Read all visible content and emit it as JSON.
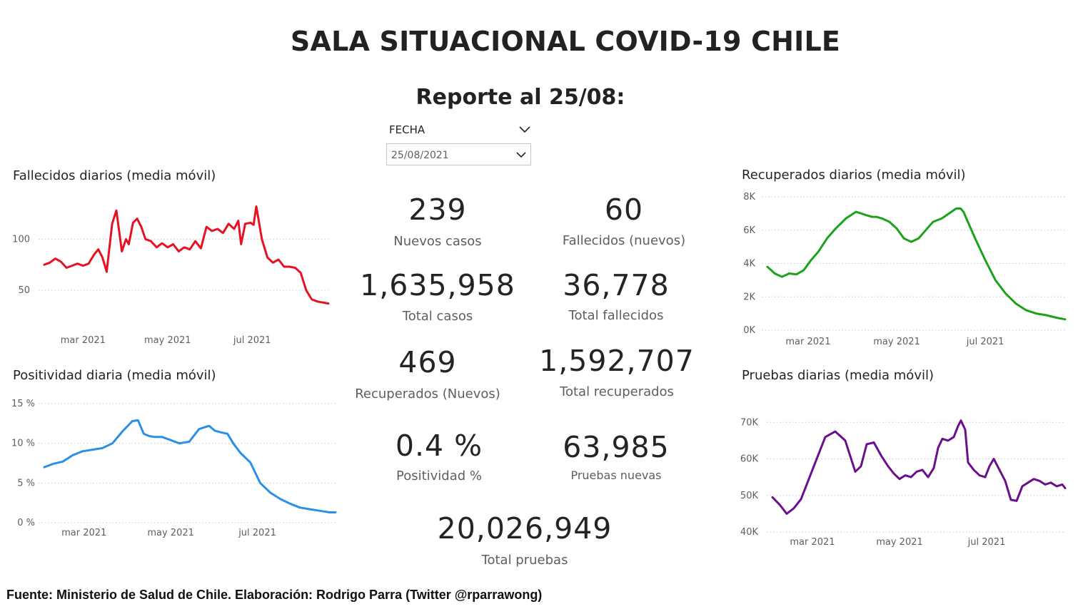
{
  "header": {
    "title": "SALA SITUACIONAL COVID-19 CHILE",
    "report": "Reporte al 25/08:"
  },
  "slicer": {
    "label": "FECHA",
    "value": "25/08/2021"
  },
  "cards": [
    {
      "value": "239",
      "label": "Nuevos casos"
    },
    {
      "value": "60",
      "label": "Fallecidos (nuevos)"
    },
    {
      "value": "1,635,958",
      "label": "Total casos"
    },
    {
      "value": "36,778",
      "label": "Total fallecidos"
    },
    {
      "value": "469",
      "label": "Recuperados (Nuevos)"
    },
    {
      "value": "1,592,707",
      "label": "Total recuperados"
    },
    {
      "value": "0.4 %",
      "label": "Positividad %"
    },
    {
      "value": "63,985",
      "label": "Pruebas nuevas"
    },
    {
      "value": "20,026,949",
      "label": "Total pruebas"
    }
  ],
  "footer": "Fuente: Ministerio de Salud de Chile. Elaboración: Rodrigo Parra (Twitter @rparrawong)",
  "colors": {
    "fallecidos": "#e81123",
    "positividad": "#2b8fe8",
    "recuperados": "#1aa31a",
    "pruebas": "#6b0f8c"
  },
  "chart_data": [
    {
      "type": "line",
      "title": "Fallecidos diarios (media móvil)",
      "xlim": [
        "2021-02-01",
        "2021-08-25"
      ],
      "x_ticks": [
        {
          "date": "2021-03-01",
          "label": "mar 2021"
        },
        {
          "date": "2021-05-01",
          "label": "may 2021"
        },
        {
          "date": "2021-07-01",
          "label": "jul 2021"
        }
      ],
      "ylim": [
        20,
        140
      ],
      "y_ticks": [
        {
          "value": 50,
          "label": "50"
        },
        {
          "value": 100,
          "label": "100"
        }
      ],
      "grid": true,
      "x": [
        "2021-02-01",
        "2021-02-05",
        "2021-02-09",
        "2021-02-13",
        "2021-02-17",
        "2021-02-21",
        "2021-02-25",
        "2021-03-01",
        "2021-03-05",
        "2021-03-09",
        "2021-03-12",
        "2021-03-15",
        "2021-03-18",
        "2021-03-22",
        "2021-03-25",
        "2021-03-29",
        "2021-04-01",
        "2021-04-03",
        "2021-04-06",
        "2021-04-09",
        "2021-04-12",
        "2021-04-15",
        "2021-04-19",
        "2021-04-23",
        "2021-04-27",
        "2021-05-01",
        "2021-05-05",
        "2021-05-09",
        "2021-05-13",
        "2021-05-17",
        "2021-05-21",
        "2021-05-25",
        "2021-05-29",
        "2021-06-02",
        "2021-06-06",
        "2021-06-10",
        "2021-06-14",
        "2021-06-18",
        "2021-06-21",
        "2021-06-23",
        "2021-06-26",
        "2021-06-30",
        "2021-07-02",
        "2021-07-04",
        "2021-07-08",
        "2021-07-12",
        "2021-07-16",
        "2021-07-20",
        "2021-07-24",
        "2021-07-28",
        "2021-08-01",
        "2021-08-05",
        "2021-08-09",
        "2021-08-13",
        "2021-08-17",
        "2021-08-21",
        "2021-08-25"
      ],
      "values": [
        75,
        77,
        81,
        78,
        72,
        74,
        76,
        74,
        76,
        85,
        90,
        82,
        68,
        115,
        128,
        88,
        100,
        95,
        116,
        120,
        112,
        100,
        98,
        92,
        96,
        92,
        95,
        88,
        92,
        90,
        98,
        91,
        112,
        108,
        110,
        106,
        115,
        110,
        118,
        95,
        115,
        116,
        114,
        132,
        100,
        82,
        77,
        80,
        73,
        73,
        72,
        67,
        50,
        41,
        39,
        38,
        37
      ],
      "color": "#e81123"
    },
    {
      "type": "line",
      "title": "Positividad diaria (media móvil)",
      "xlim": [
        "2021-02-01",
        "2021-08-25"
      ],
      "x_ticks": [
        {
          "date": "2021-03-01",
          "label": "mar 2021"
        },
        {
          "date": "2021-05-01",
          "label": "may 2021"
        },
        {
          "date": "2021-07-01",
          "label": "jul 2021"
        }
      ],
      "ylim": [
        0,
        15
      ],
      "y_ticks": [
        {
          "value": 0,
          "label": "0 %"
        },
        {
          "value": 5,
          "label": "5 %"
        },
        {
          "value": 10,
          "label": "10 %"
        },
        {
          "value": 15,
          "label": "15 %"
        }
      ],
      "grid": true,
      "x": [
        "2021-02-01",
        "2021-02-07",
        "2021-02-14",
        "2021-02-21",
        "2021-02-28",
        "2021-03-07",
        "2021-03-14",
        "2021-03-21",
        "2021-03-28",
        "2021-04-04",
        "2021-04-08",
        "2021-04-12",
        "2021-04-16",
        "2021-04-20",
        "2021-04-25",
        "2021-05-01",
        "2021-05-07",
        "2021-05-14",
        "2021-05-21",
        "2021-05-28",
        "2021-06-01",
        "2021-06-05",
        "2021-06-10",
        "2021-06-14",
        "2021-06-19",
        "2021-06-26",
        "2021-07-03",
        "2021-07-10",
        "2021-07-17",
        "2021-07-24",
        "2021-07-31",
        "2021-08-07",
        "2021-08-14",
        "2021-08-21",
        "2021-08-25"
      ],
      "values": [
        7.0,
        7.4,
        7.7,
        8.5,
        9.0,
        9.2,
        9.4,
        10.0,
        11.5,
        12.8,
        12.9,
        11.2,
        10.9,
        10.8,
        10.8,
        10.4,
        10.0,
        10.2,
        11.8,
        12.2,
        11.6,
        11.4,
        11.2,
        10.0,
        8.8,
        7.6,
        5.0,
        3.8,
        3.0,
        2.4,
        1.9,
        1.7,
        1.5,
        1.3,
        1.3
      ],
      "color": "#2b8fe8"
    },
    {
      "type": "line",
      "title": "Recuperados diarios (media móvil)",
      "xlim": [
        "2021-02-01",
        "2021-08-25"
      ],
      "x_ticks": [
        {
          "date": "2021-03-01",
          "label": "mar 2021"
        },
        {
          "date": "2021-05-01",
          "label": "may 2021"
        },
        {
          "date": "2021-07-01",
          "label": "jul 2021"
        }
      ],
      "ylim": [
        0,
        8000
      ],
      "y_ticks": [
        {
          "value": 0,
          "label": "0K"
        },
        {
          "value": 2000,
          "label": "2K"
        },
        {
          "value": 4000,
          "label": "4K"
        },
        {
          "value": 6000,
          "label": "6K"
        },
        {
          "value": 8000,
          "label": "8K"
        }
      ],
      "grid": true,
      "x": [
        "2021-02-01",
        "2021-02-06",
        "2021-02-11",
        "2021-02-16",
        "2021-02-21",
        "2021-02-26",
        "2021-03-03",
        "2021-03-08",
        "2021-03-14",
        "2021-03-20",
        "2021-03-27",
        "2021-04-03",
        "2021-04-10",
        "2021-04-14",
        "2021-04-17",
        "2021-04-21",
        "2021-04-26",
        "2021-05-01",
        "2021-05-06",
        "2021-05-11",
        "2021-05-16",
        "2021-05-21",
        "2021-05-26",
        "2021-06-01",
        "2021-06-06",
        "2021-06-11",
        "2021-06-14",
        "2021-06-16",
        "2021-06-19",
        "2021-06-24",
        "2021-07-01",
        "2021-07-08",
        "2021-07-15",
        "2021-07-22",
        "2021-07-29",
        "2021-08-05",
        "2021-08-12",
        "2021-08-19",
        "2021-08-25"
      ],
      "values": [
        3800,
        3400,
        3200,
        3400,
        3350,
        3600,
        4200,
        4700,
        5500,
        6100,
        6700,
        7100,
        6900,
        6800,
        6800,
        6700,
        6500,
        6100,
        5500,
        5300,
        5500,
        6000,
        6500,
        6700,
        7000,
        7300,
        7300,
        7100,
        6500,
        5500,
        4200,
        3000,
        2200,
        1600,
        1200,
        1000,
        900,
        750,
        650
      ],
      "color": "#1aa31a"
    },
    {
      "type": "line",
      "title": "Pruebas diarias (media móvil)",
      "xlim": [
        "2021-02-01",
        "2021-08-25"
      ],
      "x_ticks": [
        {
          "date": "2021-03-01",
          "label": "mar 2021"
        },
        {
          "date": "2021-05-01",
          "label": "may 2021"
        },
        {
          "date": "2021-07-01",
          "label": "jul 2021"
        }
      ],
      "ylim": [
        40000,
        72000
      ],
      "y_ticks": [
        {
          "value": 40000,
          "label": "40K"
        },
        {
          "value": 50000,
          "label": "50K"
        },
        {
          "value": 60000,
          "label": "60K"
        },
        {
          "value": 70000,
          "label": "70K"
        }
      ],
      "grid": true,
      "x": [
        "2021-02-01",
        "2021-02-06",
        "2021-02-11",
        "2021-02-16",
        "2021-02-21",
        "2021-02-26",
        "2021-03-03",
        "2021-03-10",
        "2021-03-17",
        "2021-03-24",
        "2021-03-31",
        "2021-04-04",
        "2021-04-08",
        "2021-04-13",
        "2021-04-18",
        "2021-04-23",
        "2021-04-27",
        "2021-05-01",
        "2021-05-05",
        "2021-05-09",
        "2021-05-13",
        "2021-05-17",
        "2021-05-21",
        "2021-05-25",
        "2021-05-28",
        "2021-05-31",
        "2021-06-04",
        "2021-06-08",
        "2021-06-11",
        "2021-06-13",
        "2021-06-16",
        "2021-06-18",
        "2021-06-22",
        "2021-06-26",
        "2021-06-30",
        "2021-07-03",
        "2021-07-06",
        "2021-07-10",
        "2021-07-14",
        "2021-07-18",
        "2021-07-22",
        "2021-07-26",
        "2021-07-30",
        "2021-08-03",
        "2021-08-07",
        "2021-08-11",
        "2021-08-15",
        "2021-08-19",
        "2021-08-23",
        "2021-08-25"
      ],
      "values": [
        49500,
        47500,
        45000,
        46500,
        49000,
        54000,
        59000,
        66000,
        67500,
        65000,
        56500,
        58000,
        64000,
        64500,
        61000,
        58000,
        56000,
        54500,
        55500,
        55000,
        56500,
        57000,
        55000,
        57500,
        63000,
        65500,
        65000,
        66000,
        69000,
        70500,
        68000,
        59000,
        57000,
        55500,
        55000,
        58000,
        60000,
        57000,
        54000,
        48800,
        48500,
        52500,
        53500,
        54500,
        54000,
        53000,
        53500,
        52500,
        53000,
        52000
      ],
      "color": "#6b0f8c"
    }
  ]
}
